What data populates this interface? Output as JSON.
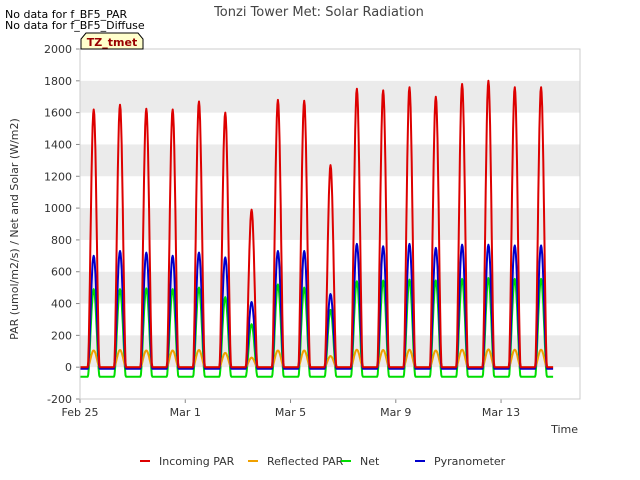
{
  "notes": [
    "No data for f_BF5_PAR",
    "No data for f_BF5_Diffuse"
  ],
  "badge": "TZ_tmet",
  "colors": {
    "incoming_par": "#dd0000",
    "reflected_par": "#f0a000",
    "net": "#00dd00",
    "pyranometer": "#0000cc",
    "band": "#ebebeb",
    "badge_bg": "#ffffcc",
    "badge_text": "#990000"
  },
  "chart_data": {
    "type": "line",
    "title": "Tonzi Tower Met: Solar Radiation",
    "xlabel": "Time",
    "ylabel": "PAR (umol/m2/s) / Net and Solar (W/m2)",
    "xlim": [
      "2022-02-25",
      "2022-03-16"
    ],
    "ylim": [
      -200,
      2000
    ],
    "yticks": [
      -200,
      0,
      200,
      400,
      600,
      800,
      1000,
      1200,
      1400,
      1600,
      1800,
      2000
    ],
    "xticks": [
      {
        "date": "2022-02-25",
        "label": "Feb 25"
      },
      {
        "date": "2022-03-01",
        "label": "Mar 1"
      },
      {
        "date": "2022-03-05",
        "label": "Mar 5"
      },
      {
        "date": "2022-03-09",
        "label": "Mar 9"
      },
      {
        "date": "2022-03-13",
        "label": "Mar 13"
      }
    ],
    "legend_position": "bottom",
    "grid": "alternating horizontal bands",
    "days": [
      "2022-02-25",
      "2022-02-26",
      "2022-02-27",
      "2022-02-28",
      "2022-03-01",
      "2022-03-02",
      "2022-03-03",
      "2022-03-04",
      "2022-03-05",
      "2022-03-06",
      "2022-03-07",
      "2022-03-08",
      "2022-03-09",
      "2022-03-10",
      "2022-03-11",
      "2022-03-12",
      "2022-03-13",
      "2022-03-14"
    ],
    "series": [
      {
        "name": "Incoming PAR",
        "key": "incoming_par",
        "night": 0,
        "daily_peak": [
          1620,
          1650,
          1625,
          1620,
          1670,
          1600,
          990,
          1680,
          1675,
          1270,
          1750,
          1740,
          1760,
          1700,
          1780,
          1800,
          1760,
          1760
        ]
      },
      {
        "name": "Reflected PAR",
        "key": "reflected_par",
        "night": 0,
        "daily_peak": [
          105,
          108,
          105,
          105,
          108,
          90,
          60,
          105,
          105,
          70,
          110,
          108,
          110,
          105,
          110,
          112,
          110,
          110
        ]
      },
      {
        "name": "Net",
        "key": "net",
        "night": -60,
        "daily_peak": [
          490,
          490,
          495,
          490,
          500,
          440,
          270,
          520,
          500,
          360,
          540,
          545,
          550,
          545,
          555,
          560,
          555,
          555
        ]
      },
      {
        "name": "Pyranometer",
        "key": "pyranometer",
        "night": -10,
        "daily_peak": [
          700,
          730,
          720,
          700,
          720,
          690,
          410,
          730,
          730,
          460,
          775,
          760,
          775,
          750,
          770,
          770,
          765,
          765
        ]
      }
    ]
  }
}
